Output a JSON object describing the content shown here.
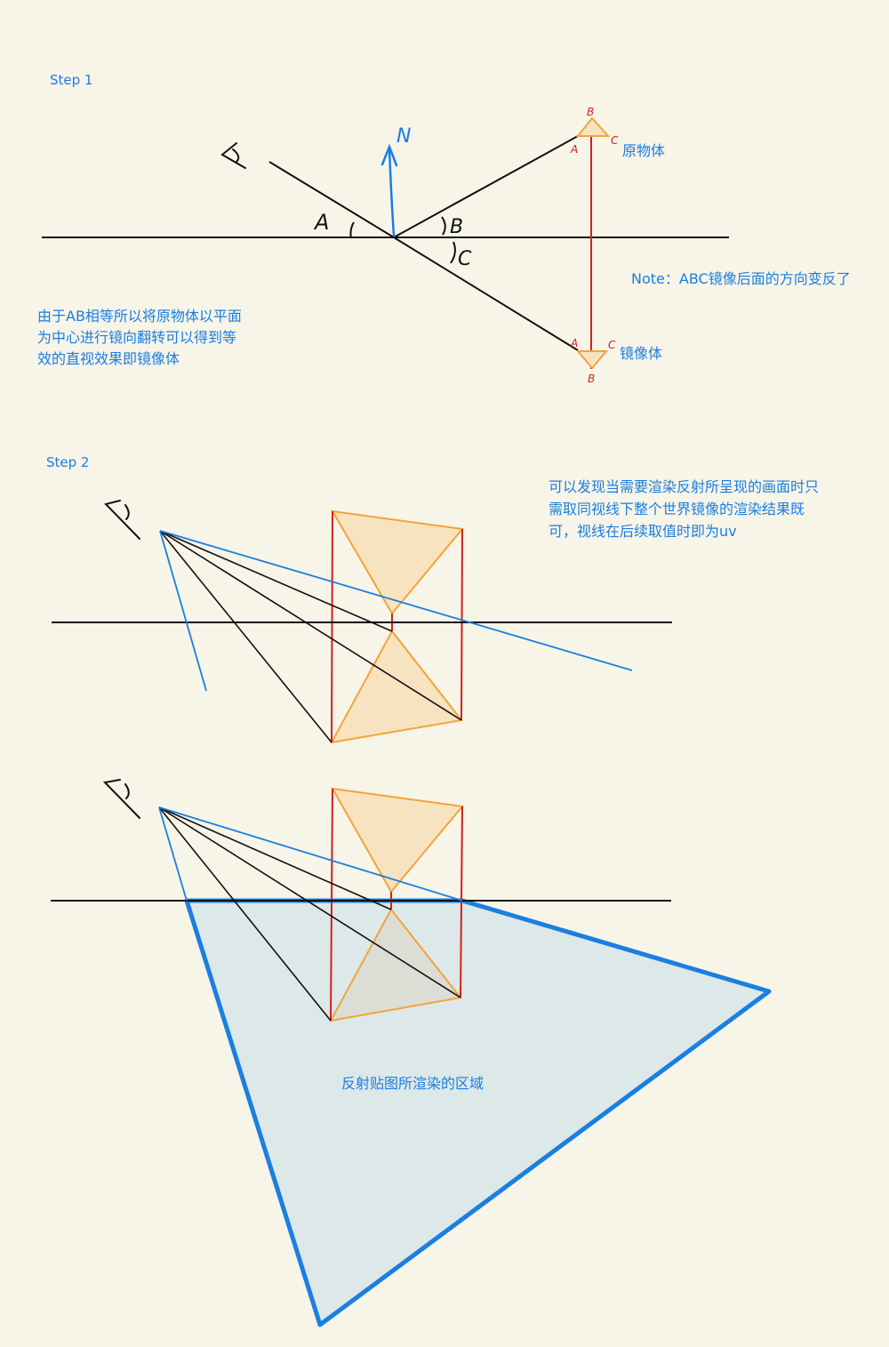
{
  "step1": {
    "heading": "Step 1",
    "normal_label": "N",
    "angle_labels": {
      "a": "A",
      "b": "B",
      "c": "C"
    },
    "original": {
      "label": "原物体",
      "vertex_a": "A",
      "vertex_b": "B",
      "vertex_c": "C"
    },
    "mirror": {
      "label": "镜像体",
      "vertex_a": "A",
      "vertex_b": "B",
      "vertex_c": "C"
    },
    "note": "Note：ABC镜像后面的方向变反了",
    "explanation": [
      "由于AB相等所以将原物体以平面",
      "为中心进行镜向翻转可以得到等",
      "效的直视效果即镜像体"
    ]
  },
  "step2": {
    "heading": "Step 2",
    "explanation": [
      "可以发现当需要渲染反射所呈现的画面时只",
      "需取同视线下整个世界镜像的渲染结果既",
      "可，视线在后续取值时即为uv"
    ],
    "region_label": "反射贴图所渲染的区域"
  },
  "colors": {
    "background": "#f7f4e8",
    "text_blue": "#1a7fe0",
    "line_black": "#111111",
    "line_red": "#d42020",
    "shape_orange": "#f2a43a",
    "shape_fill": "#f8e3c0",
    "region_blue": "#1a7fe0",
    "region_fill": "#dde8e8"
  }
}
